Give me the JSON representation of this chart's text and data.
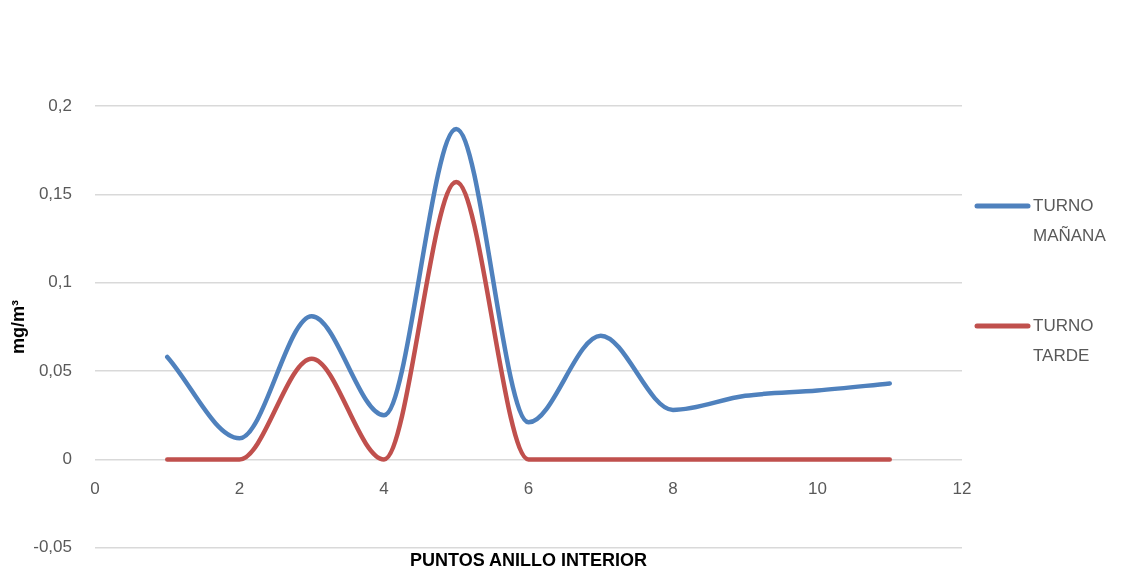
{
  "chart_data": {
    "type": "line",
    "xlabel": "PUNTOS ANILLO INTERIOR",
    "ylabel": "mg/m³",
    "x": [
      1,
      2,
      3,
      4,
      5,
      6,
      7,
      8,
      9,
      10,
      11
    ],
    "series": [
      {
        "name": "TURNO MAÑANA",
        "color": "#4f81bd",
        "values": [
          0.058,
          0.012,
          0.081,
          0.025,
          0.187,
          0.021,
          0.07,
          0.028,
          0.036,
          0.039,
          0.043
        ]
      },
      {
        "name": "TURNO TARDE",
        "color": "#c0504d",
        "values": [
          0,
          0,
          0.057,
          0,
          0.157,
          0,
          0,
          0,
          0,
          0,
          0
        ]
      }
    ],
    "xlim": [
      0,
      12
    ],
    "xticks": [
      0,
      2,
      4,
      6,
      8,
      10,
      12
    ],
    "ylim": [
      -0.05,
      0.2
    ],
    "yticks": [
      {
        "value": -0.05,
        "label": "-0,05"
      },
      0,
      {
        "value": 0.05,
        "label": "0,05"
      },
      {
        "value": 0.1,
        "label": "0,1"
      },
      {
        "value": 0.15,
        "label": "0,15"
      },
      {
        "value": 0.2,
        "label": "0,2"
      }
    ],
    "grid": "y",
    "legend": "right",
    "marker": "none",
    "line_style": "solid"
  }
}
